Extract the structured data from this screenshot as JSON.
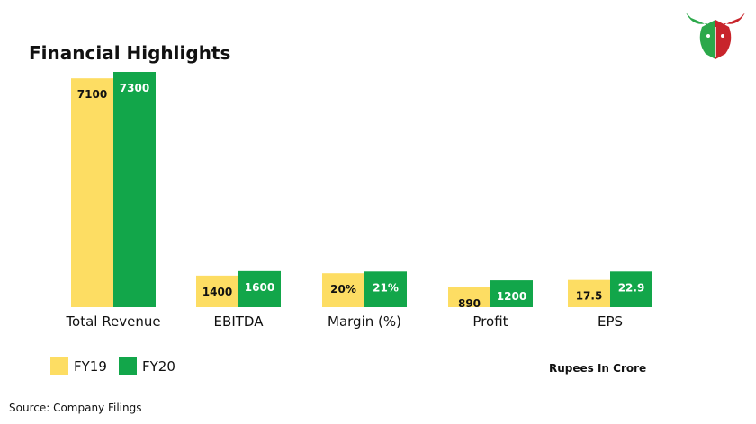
{
  "chart_data": {
    "type": "bar",
    "title": "Financial Highlights",
    "categories": [
      "Total Revenue",
      "EBITDA",
      "Margin (%)",
      "Profit",
      "EPS"
    ],
    "series": [
      {
        "name": "FY19",
        "color": "#fddd63",
        "values": [
          7100,
          1400,
          20,
          890,
          17.5
        ],
        "labels": [
          "7100",
          "1400",
          "20%",
          "890",
          "17.5"
        ]
      },
      {
        "name": "FY20",
        "color": "#12a64a",
        "values": [
          7300,
          1600,
          21,
          1200,
          22.9
        ],
        "labels": [
          "7300",
          "1600",
          "21%",
          "1200",
          "22.9"
        ]
      }
    ],
    "unit_note": "Rupees In Crore",
    "legend_position": "bottom-left",
    "grid": false
  },
  "footer": {
    "source": "Source: Company Filings"
  },
  "logo": {
    "icon": "bull-head-logo-icon",
    "colors": [
      "#2ba84a",
      "#c8242b"
    ]
  }
}
